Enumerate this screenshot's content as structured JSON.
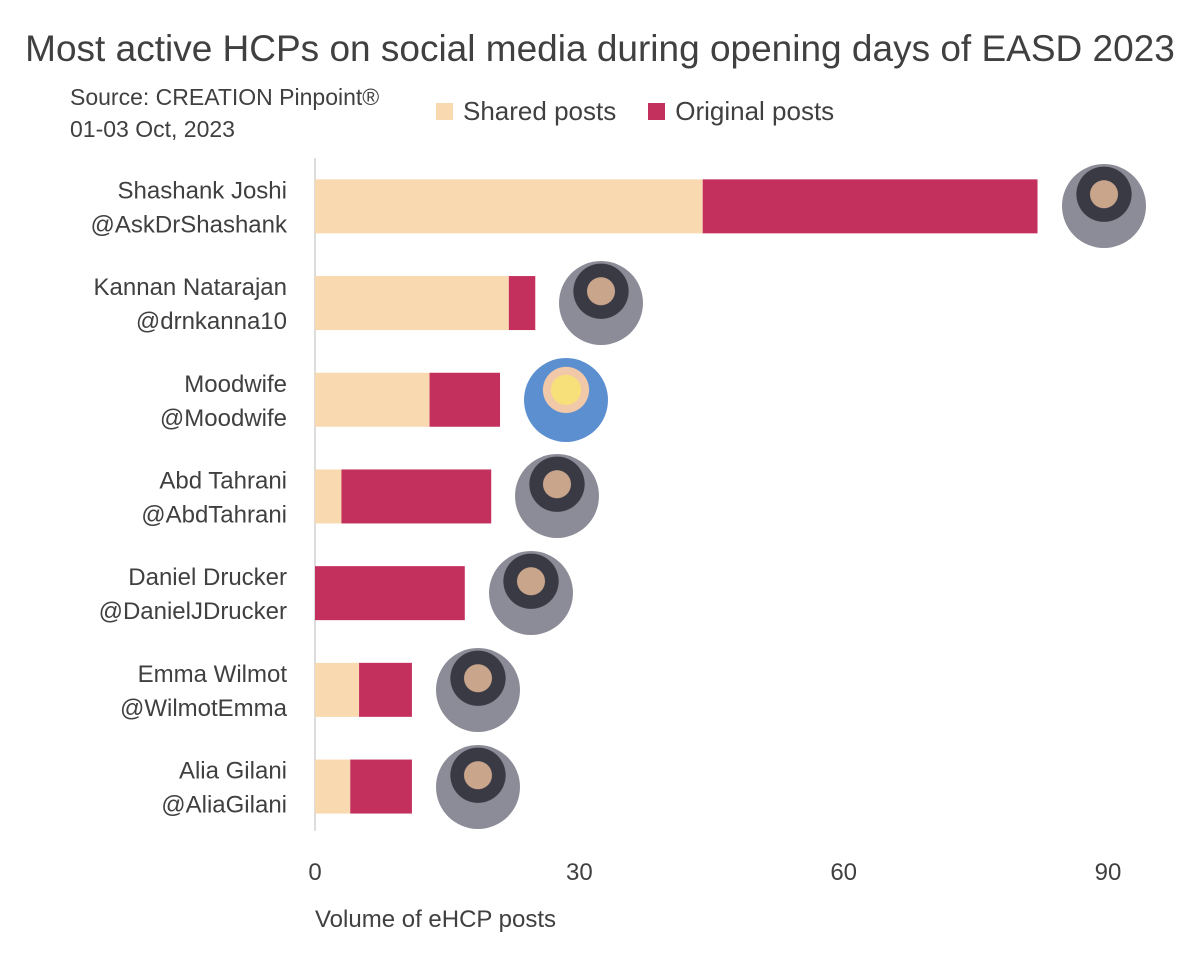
{
  "colors": {
    "shared": "#F8D9B0",
    "original": "#C4305E",
    "axis": "#D0D0D0",
    "text": "#404040"
  },
  "source": {
    "line1": "Source: CREATION Pinpoint®",
    "line2": "01-03 Oct, 2023"
  },
  "chart_data": {
    "type": "bar",
    "orientation": "horizontal",
    "stacked": true,
    "title": "Most active HCPs on social media during opening days of EASD 2023",
    "xlabel": "Volume of eHCP posts",
    "xlim": [
      0,
      90
    ],
    "xticks": [
      0,
      30,
      60,
      90
    ],
    "grid": false,
    "legend": "top",
    "categories": [
      {
        "name": "Shashank Joshi",
        "handle": "@AskDrShashank"
      },
      {
        "name": "Kannan Natarajan",
        "handle": "@drnkanna10"
      },
      {
        "name": "Moodwife",
        "handle": "@Moodwife"
      },
      {
        "name": "Abd Tahrani",
        "handle": "@AbdTahrani"
      },
      {
        "name": "Daniel Drucker",
        "handle": "@DanielJDrucker"
      },
      {
        "name": "Emma Wilmot",
        "handle": "@WilmotEmma"
      },
      {
        "name": "Alia Gilani",
        "handle": "@AliaGilani"
      }
    ],
    "series": [
      {
        "name": "Shared posts",
        "key": "shared",
        "values": [
          44,
          22,
          13,
          3,
          0,
          5,
          4
        ]
      },
      {
        "name": "Original posts",
        "key": "original",
        "values": [
          38,
          3,
          8,
          17,
          17,
          6,
          7
        ]
      }
    ]
  },
  "avatars": [
    "profile-photo",
    "profile-photo",
    "cartoon-avatar",
    "profile-photo",
    "profile-photo",
    "profile-photo",
    "profile-photo"
  ]
}
